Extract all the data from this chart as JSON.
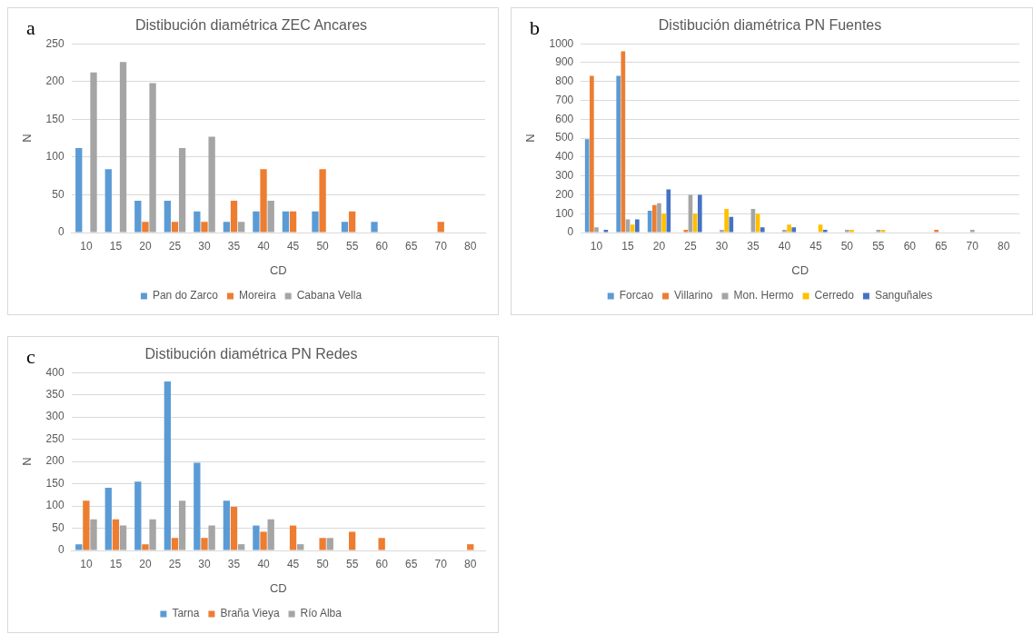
{
  "chart_data": [
    {
      "type": "bar",
      "title": "Distibución diamétrica ZEC Ancares",
      "xlabel": "CD",
      "ylabel": "N",
      "annotations": [
        "a"
      ],
      "categories": [
        "10",
        "15",
        "20",
        "25",
        "30",
        "35",
        "40",
        "45",
        "50",
        "55",
        "60",
        "65",
        "70",
        "80"
      ],
      "series": [
        {
          "name": "Pan do Zarco",
          "color": "#5b9bd5",
          "values": [
            112,
            84,
            42,
            42,
            28,
            14,
            28,
            28,
            28,
            14,
            14,
            0,
            0,
            0
          ]
        },
        {
          "name": "Moreira",
          "color": "#ed7d31",
          "values": [
            0,
            0,
            14,
            14,
            14,
            42,
            84,
            28,
            84,
            28,
            0,
            0,
            14,
            0
          ]
        },
        {
          "name": "Cabana Vella",
          "color": "#a5a5a5",
          "values": [
            212,
            226,
            198,
            112,
            127,
            14,
            42,
            0,
            0,
            0,
            0,
            0,
            0,
            0
          ]
        }
      ],
      "ylim": [
        0,
        250
      ],
      "yticks": [
        0,
        50,
        100,
        150,
        200,
        250
      ],
      "grid": "y",
      "legend": "bottom"
    },
    {
      "type": "bar",
      "title": "Distibución diamétrica PN Fuentes",
      "xlabel": "CD",
      "ylabel": "N",
      "annotations": [
        "b"
      ],
      "categories": [
        "10",
        "15",
        "20",
        "25",
        "30",
        "35",
        "40",
        "45",
        "50",
        "55",
        "60",
        "65",
        "70",
        "80"
      ],
      "series": [
        {
          "name": "Forcao",
          "color": "#5b9bd5",
          "values": [
            495,
            830,
            115,
            0,
            0,
            0,
            0,
            0,
            0,
            0,
            0,
            0,
            0,
            0
          ]
        },
        {
          "name": "Villarino",
          "color": "#ed7d31",
          "values": [
            830,
            960,
            145,
            15,
            0,
            0,
            0,
            0,
            0,
            0,
            0,
            15,
            0,
            0
          ]
        },
        {
          "name": "Mon. Hermo",
          "color": "#a5a5a5",
          "values": [
            28,
            70,
            155,
            200,
            15,
            125,
            15,
            0,
            15,
            15,
            0,
            0,
            15,
            0
          ]
        },
        {
          "name": "Cerredo",
          "color": "#ffc000",
          "values": [
            0,
            42,
            100,
            100,
            125,
            100,
            42,
            42,
            15,
            15,
            0,
            0,
            0,
            0
          ]
        },
        {
          "name": "Sanguñales",
          "color": "#4472c4",
          "values": [
            15,
            70,
            228,
            200,
            83,
            28,
            28,
            15,
            0,
            0,
            0,
            0,
            0,
            0
          ]
        }
      ],
      "ylim": [
        0,
        1000
      ],
      "yticks": [
        0,
        100,
        200,
        300,
        400,
        500,
        600,
        700,
        800,
        900,
        1000
      ],
      "grid": "y",
      "legend": "bottom"
    },
    {
      "type": "bar",
      "title": "Distibución diamétrica PN Redes",
      "xlabel": "CD",
      "ylabel": "N",
      "annotations": [
        "c"
      ],
      "categories": [
        "10",
        "15",
        "20",
        "25",
        "30",
        "35",
        "40",
        "45",
        "50",
        "55",
        "60",
        "65",
        "70",
        "80"
      ],
      "series": [
        {
          "name": "Tarna",
          "color": "#5b9bd5",
          "values": [
            14,
            141,
            155,
            380,
            197,
            112,
            56,
            0,
            0,
            0,
            0,
            0,
            0,
            0
          ]
        },
        {
          "name": "Braña Vieya",
          "color": "#ed7d31",
          "values": [
            112,
            70,
            14,
            28,
            28,
            98,
            42,
            56,
            28,
            42,
            28,
            0,
            0,
            14
          ]
        },
        {
          "name": "Río Alba",
          "color": "#a5a5a5",
          "values": [
            70,
            56,
            70,
            112,
            56,
            14,
            70,
            14,
            28,
            0,
            0,
            0,
            0,
            0
          ]
        }
      ],
      "ylim": [
        0,
        400
      ],
      "yticks": [
        0,
        50,
        100,
        150,
        200,
        250,
        300,
        350,
        400
      ],
      "grid": "y",
      "legend": "bottom"
    }
  ]
}
